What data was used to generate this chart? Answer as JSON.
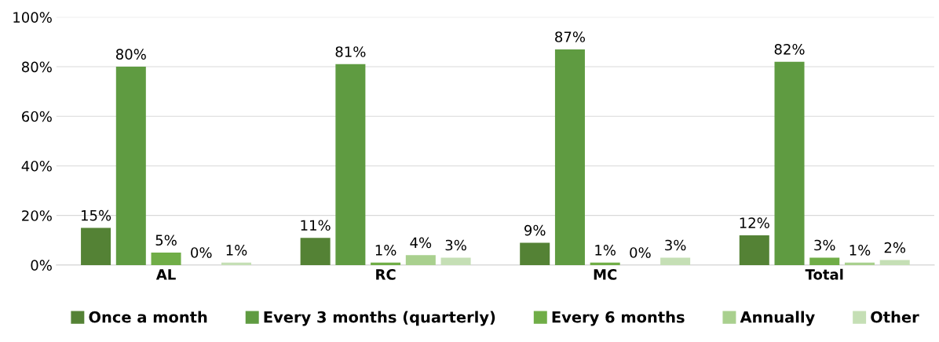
{
  "chart_data": {
    "type": "bar",
    "categories": [
      "AL",
      "RC",
      "MC",
      "Total"
    ],
    "series": [
      {
        "name": "Once a month",
        "color": "#548235",
        "values": [
          15,
          11,
          9,
          12
        ]
      },
      {
        "name": "Every 3 months (quarterly)",
        "color": "#5f9b41",
        "values": [
          80,
          81,
          87,
          82
        ]
      },
      {
        "name": "Every 6 months",
        "color": "#70ad47",
        "values": [
          5,
          1,
          1,
          3
        ]
      },
      {
        "name": "Annually",
        "color": "#a9d08e",
        "values": [
          0,
          4,
          0,
          1
        ]
      },
      {
        "name": "Other",
        "color": "#c5dfb5",
        "values": [
          1,
          3,
          3,
          2
        ]
      }
    ],
    "ylim": [
      0,
      100
    ],
    "yticks": [
      {
        "value": 0,
        "label": "0%"
      },
      {
        "value": 20,
        "label": "20%"
      },
      {
        "value": 40,
        "label": "40%"
      },
      {
        "value": 60,
        "label": "60%"
      },
      {
        "value": 80,
        "label": "80%"
      },
      {
        "value": 100,
        "label": "100%"
      }
    ],
    "value_labels": [
      [
        "15%",
        "11%",
        "9%",
        "12%"
      ],
      [
        "80%",
        "81%",
        "87%",
        "82%"
      ],
      [
        "5%",
        "1%",
        "1%",
        "3%"
      ],
      [
        "0%",
        "4%",
        "0%",
        "1%"
      ],
      [
        "1%",
        "3%",
        "3%",
        "2%"
      ]
    ],
    "grid": "y",
    "legend": "bottom"
  }
}
